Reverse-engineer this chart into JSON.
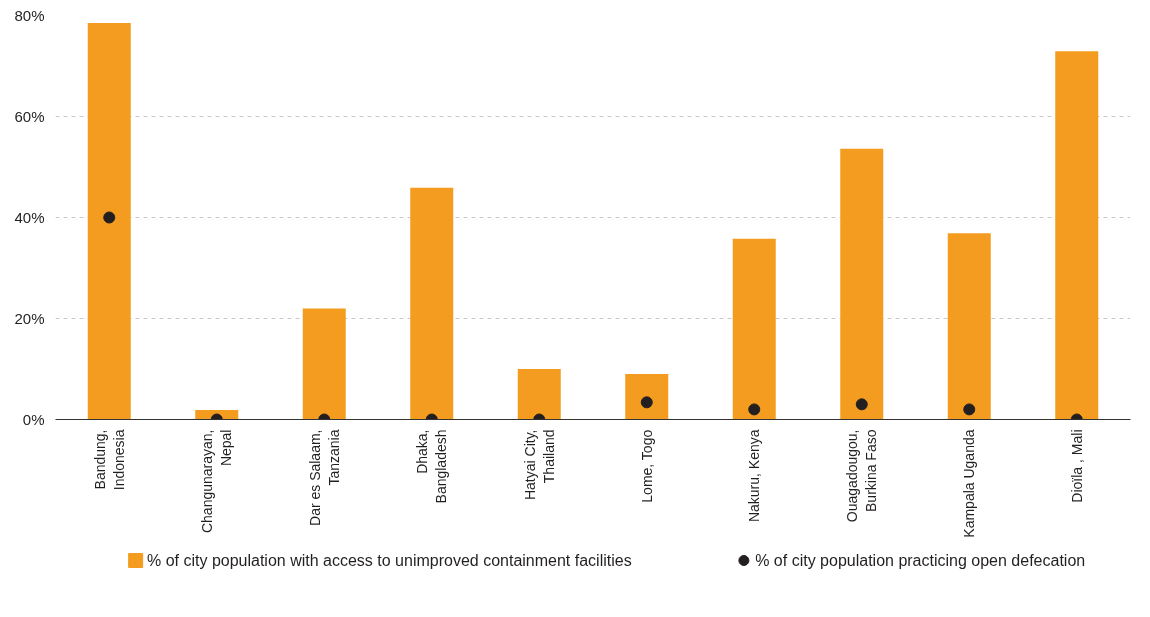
{
  "chart_data": {
    "type": "bar",
    "categories": [
      "Bandung,\nIndonesia",
      "Changunarayan,\nNepal",
      "Dar es Salaam,\nTanzania",
      "Dhaka,\nBangladesh",
      "Hatyai City,\nThailand",
      "Lome, Togo",
      "Nakuru, Kenya",
      "Ouagadougou,\nBurkina Faso",
      "Kampala Uganda",
      "Dioïla , Mali"
    ],
    "series": [
      {
        "name": "% of city population with access to unimproved containment facilities",
        "color": "#f39c1f",
        "values": [
          78.5,
          1.9,
          22,
          45.9,
          10,
          9,
          35.8,
          53.6,
          36.9,
          72.9
        ]
      },
      {
        "name": "% of city population practicing open defecation",
        "type": "scatter",
        "color": "#231f20",
        "values": [
          40,
          0,
          0,
          0,
          0,
          3.4,
          2,
          3,
          2,
          0
        ]
      }
    ],
    "ylim": [
      0,
      80
    ],
    "yticks": [
      {
        "value": 0,
        "label": "0%"
      },
      {
        "value": 20,
        "label": "20%"
      },
      {
        "value": 40,
        "label": "40%"
      },
      {
        "value": 60,
        "label": "60%"
      },
      {
        "value": 80,
        "label": "80%"
      }
    ],
    "grid": "y",
    "legend": "bottom",
    "marker": "circle"
  }
}
